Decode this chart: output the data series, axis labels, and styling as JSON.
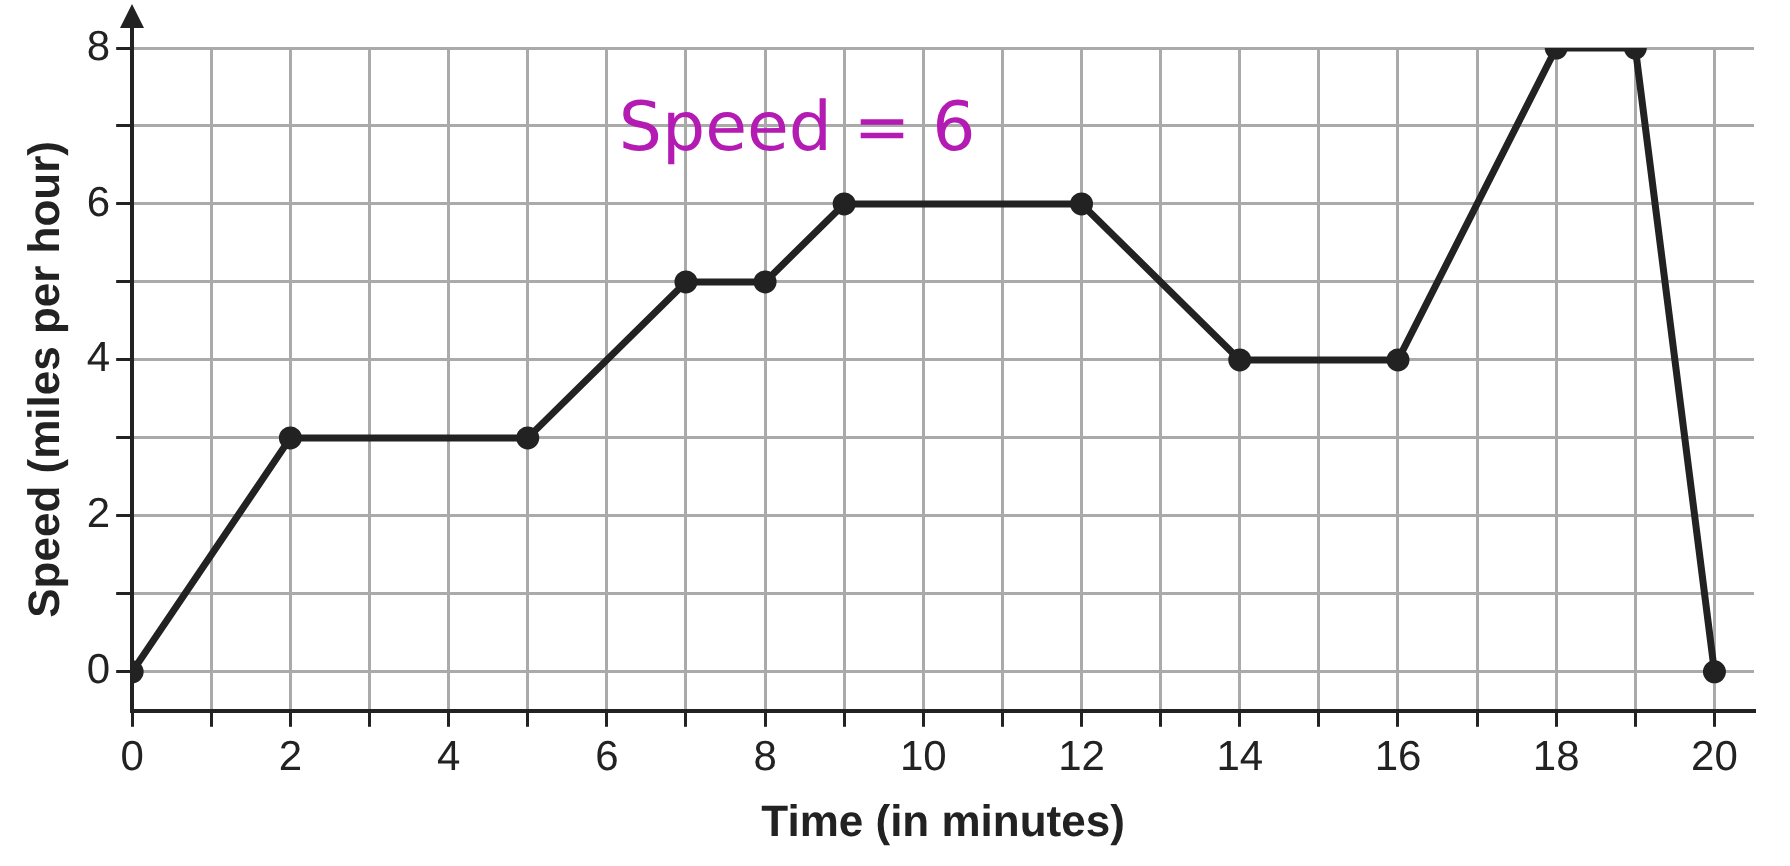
{
  "chart_data": {
    "type": "line",
    "xlabel": "Time (in minutes)",
    "ylabel": "Speed (miles per hour)",
    "x": [
      0,
      2,
      5,
      7,
      8,
      9,
      12,
      14,
      16,
      18,
      19,
      20
    ],
    "series": [
      {
        "color": "#222222",
        "values": [
          0,
          3,
          3,
          5,
          5,
          6,
          6,
          4,
          4,
          8,
          8,
          0
        ]
      }
    ],
    "xlim": [
      0,
      20.5
    ],
    "ylim": [
      -0.5,
      8
    ],
    "xticks": [
      0,
      {
        "value": 1,
        "label": null
      },
      2,
      {
        "value": 3,
        "label": null
      },
      4,
      {
        "value": 5,
        "label": null
      },
      6,
      {
        "value": 7,
        "label": null
      },
      8,
      {
        "value": 9,
        "label": null
      },
      10,
      {
        "value": 11,
        "label": null
      },
      12,
      {
        "value": 13,
        "label": null
      },
      14,
      {
        "value": 15,
        "label": null
      },
      16,
      {
        "value": 17,
        "label": null
      },
      18,
      {
        "value": 19,
        "label": null
      },
      20
    ],
    "yticks": [
      0,
      {
        "value": 1,
        "label": null
      },
      2,
      {
        "value": 3,
        "label": null
      },
      4,
      {
        "value": 5,
        "label": null
      },
      6,
      {
        "value": 7,
        "label": null
      },
      8
    ],
    "grid": true,
    "legend": false,
    "marker": "circle",
    "line_style": "solid",
    "annotations": [
      "Speed = 6"
    ]
  }
}
